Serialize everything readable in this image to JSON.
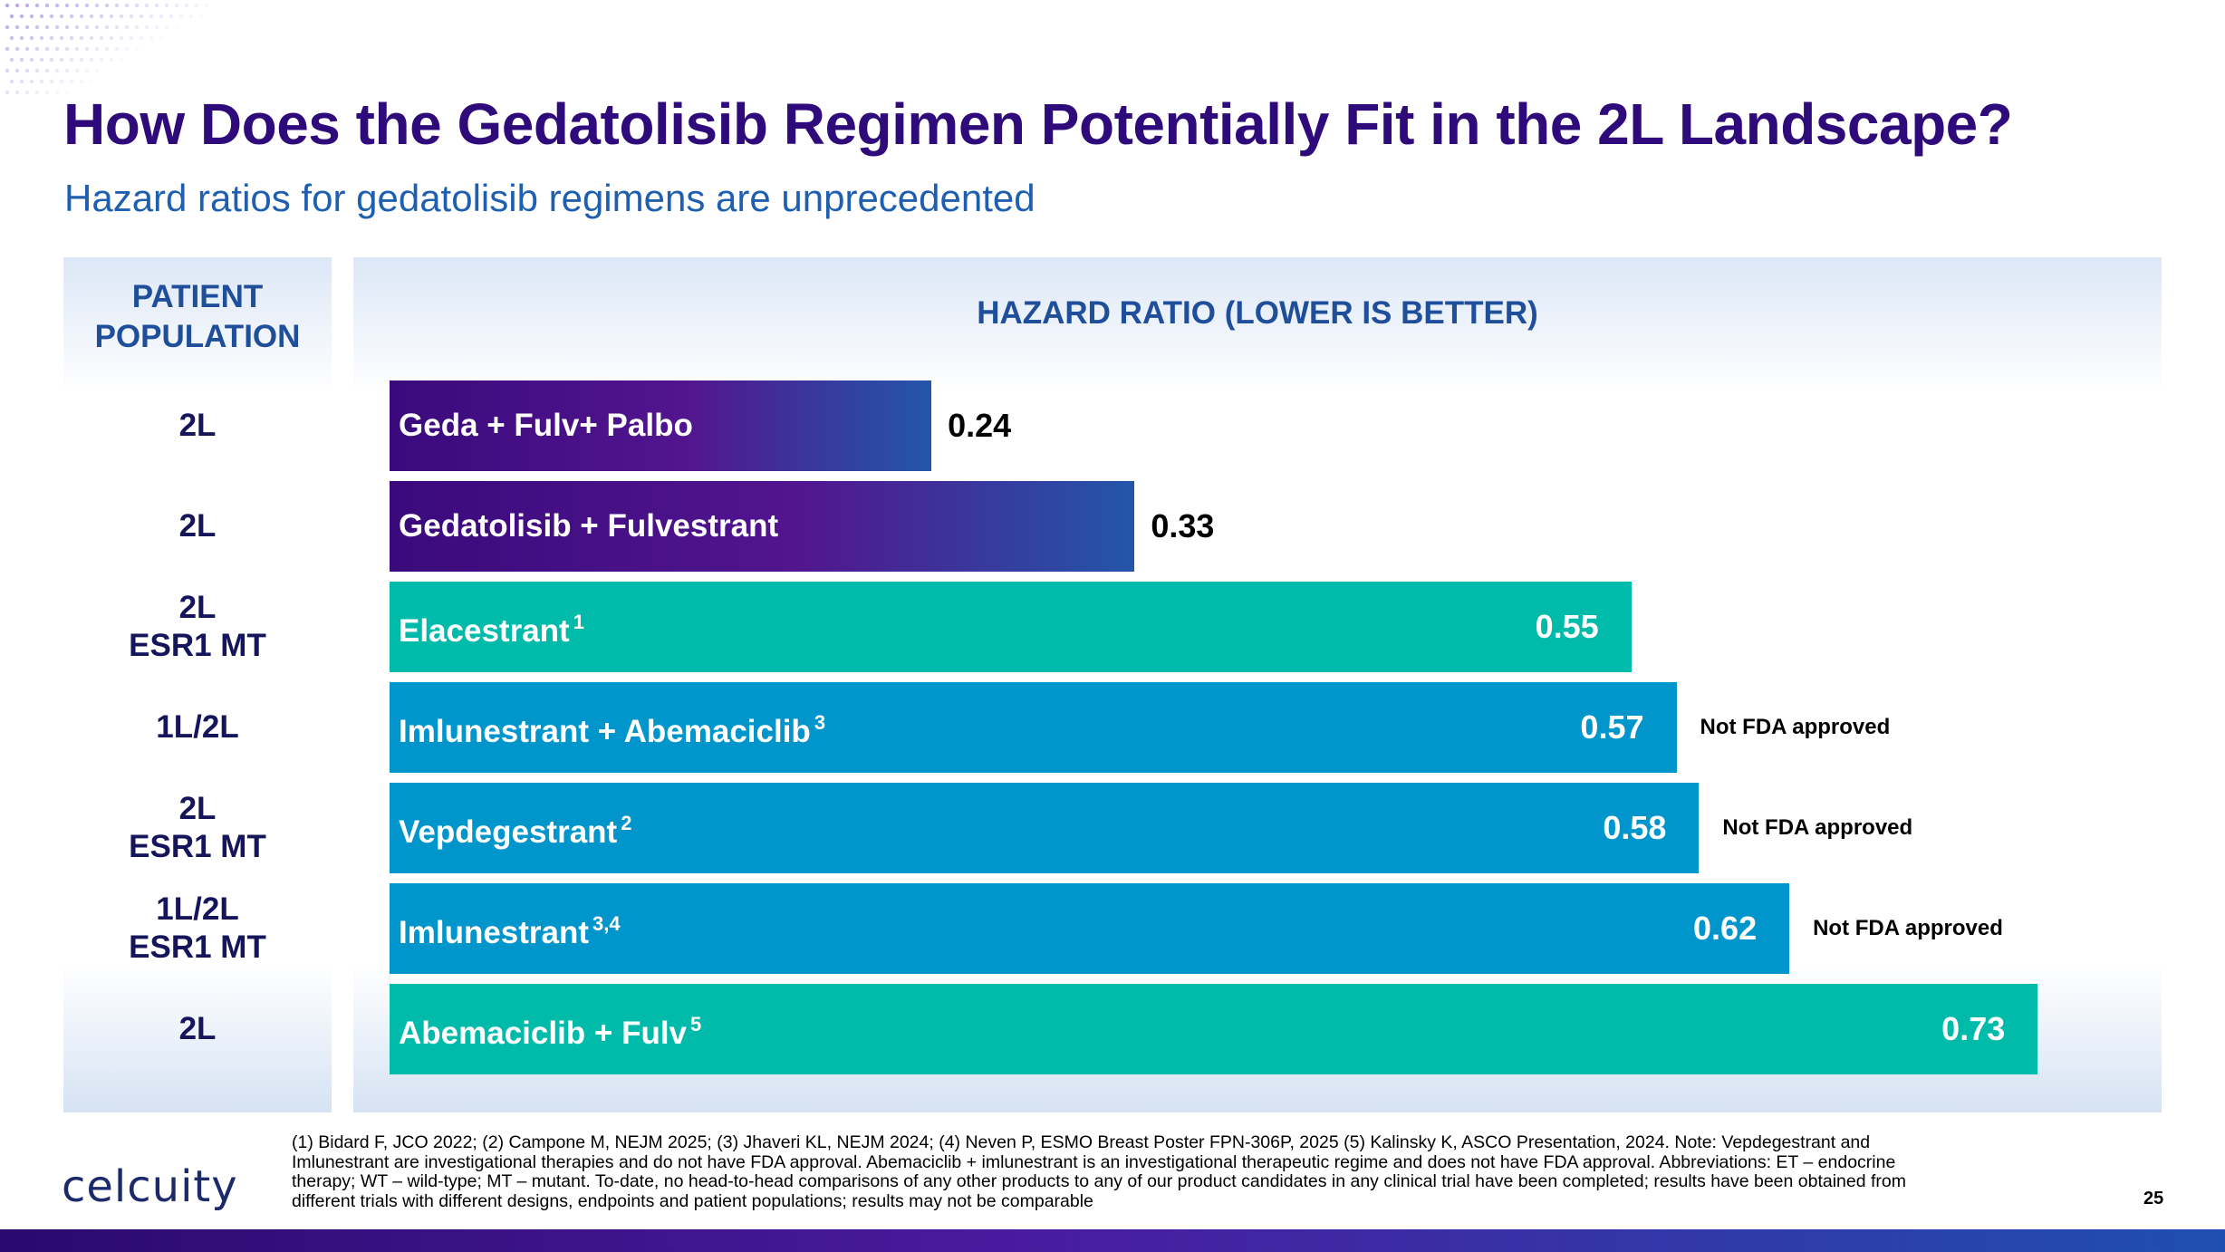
{
  "title": "How Does the Gedatolisib Regimen Potentially Fit in the 2L Landscape?",
  "subtitle": "Hazard ratios for gedatolisib regimens are unprecedented",
  "columns": {
    "population_header": "PATIENT POPULATION",
    "hazard_header": "HAZARD RATIO (LOWER IS BETTER)"
  },
  "chart_data": {
    "type": "bar",
    "orientation": "horizontal",
    "title": "HAZARD RATIO (LOWER IS BETTER)",
    "xlim": [
      0,
      0.76
    ],
    "categories": [
      "Geda + Fulv+ Palbo",
      "Gedatolisib + Fulvestrant",
      "Elacestrant",
      "Imlunestrant + Abemaciclib",
      "Vepdegestrant",
      "Imlunestrant",
      "Abemaciclib + Fulv"
    ],
    "values": [
      0.24,
      0.33,
      0.55,
      0.57,
      0.58,
      0.62,
      0.73
    ],
    "rows": [
      {
        "population": [
          "2L"
        ],
        "label": "Geda + Fulv+ Palbo",
        "sup": "",
        "value": 0.24,
        "value_text": "0.24",
        "note": "",
        "style": "geda",
        "color": "#2f2a8c"
      },
      {
        "population": [
          "2L"
        ],
        "label": "Gedatolisib + Fulvestrant",
        "sup": "",
        "value": 0.33,
        "value_text": "0.33",
        "note": "",
        "style": "geda",
        "color": "#2f2a8c"
      },
      {
        "population": [
          "2L",
          "ESR1 MT"
        ],
        "label": "Elacestrant",
        "sup": "1",
        "value": 0.55,
        "value_text": "0.55",
        "note": "",
        "style": "teal",
        "color": "#00bba9"
      },
      {
        "population": [
          "1L/2L"
        ],
        "label": "Imlunestrant + Abemaciclib",
        "sup": "3",
        "value": 0.57,
        "value_text": "0.57",
        "note": "Not FDA approved",
        "style": "blue",
        "color": "#0096cc"
      },
      {
        "population": [
          "2L",
          "ESR1 MT"
        ],
        "label": "Vepdegestrant",
        "sup": "2",
        "value": 0.58,
        "value_text": "0.58",
        "note": "Not FDA approved",
        "style": "blue",
        "color": "#0096cc"
      },
      {
        "population": [
          "1L/2L",
          "ESR1 MT"
        ],
        "label": "Imlunestrant",
        "sup": "3,4",
        "value": 0.62,
        "value_text": "0.62",
        "note": "Not FDA approved",
        "style": "blue",
        "color": "#0096cc"
      },
      {
        "population": [
          "2L"
        ],
        "label": "Abemaciclib + Fulv",
        "sup": "5",
        "value": 0.73,
        "value_text": "0.73",
        "note": "",
        "style": "teal",
        "color": "#00bba9"
      }
    ]
  },
  "footnote": "(1) Bidard F, JCO 2022; (2) Campone M, NEJM 2025; (3) Jhaveri KL, NEJM 2024; (4) Neven P, ESMO Breast Poster FPN-306P, 2025 (5) Kalinsky K, ASCO Presentation, 2024. Note: Vepdegestrant and Imlunestrant are investigational therapies and do not have FDA approval. Abemaciclib + imlunestrant is an investigational therapeutic regime and does not have FDA approval. Abbreviations: ET – endocrine therapy; WT – wild-type; MT – mutant. To-date, no head-to-head comparisons of any other products to any of our product candidates in any clinical trial have been completed; results have been obtained from different trials with different designs, endpoints and patient populations; results may not be comparable",
  "logo": "celcuity",
  "page_number": "25",
  "colors": {
    "title": "#2e0a7a",
    "subtitle": "#1f5fb0",
    "header": "#1f4e9a",
    "teal": "#00bba9",
    "blue": "#0096cc",
    "geda_start": "#3a0a7c",
    "geda_end": "#2356aa"
  }
}
